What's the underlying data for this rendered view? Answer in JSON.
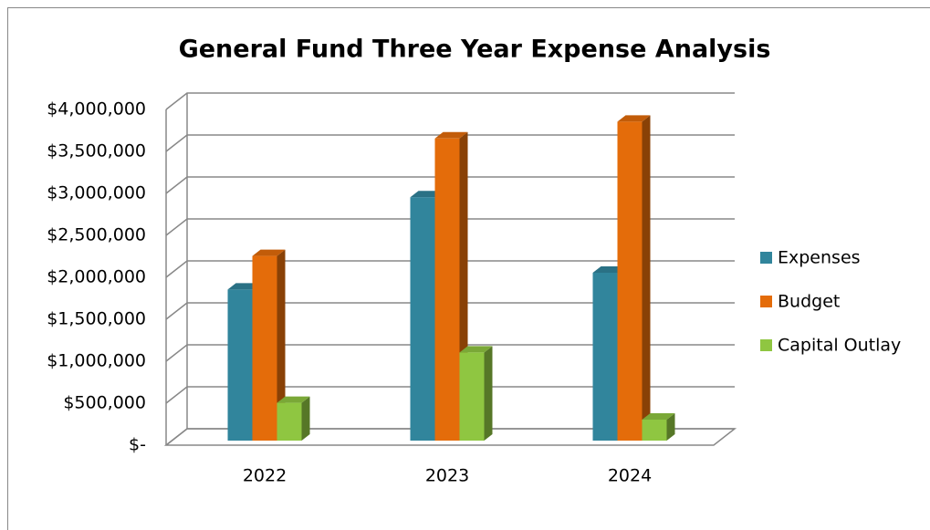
{
  "chart_data": {
    "type": "bar3d",
    "title": "General Fund Three Year Expense Analysis",
    "categories": [
      "2022",
      "2023",
      "2024"
    ],
    "series": [
      {
        "name": "Expenses",
        "color": "#31859c",
        "values": [
          1800000,
          2900000,
          2000000
        ]
      },
      {
        "name": "Budget",
        "color": "#e46c0a",
        "values": [
          2200000,
          3600000,
          3800000
        ]
      },
      {
        "name": "Capital Outlay",
        "color": "#8fc641",
        "values": [
          450000,
          1050000,
          250000
        ]
      }
    ],
    "ylim": [
      0,
      4000000
    ],
    "yticks": [
      {
        "value": 0,
        "label": "$-"
      },
      {
        "value": 500000,
        "label": "$500,000"
      },
      {
        "value": 1000000,
        "label": "$1,000,000"
      },
      {
        "value": 1500000,
        "label": "$1,500,000"
      },
      {
        "value": 2000000,
        "label": "$2,000,000"
      },
      {
        "value": 2500000,
        "label": "$2,500,000"
      },
      {
        "value": 3000000,
        "label": "$3,000,000"
      },
      {
        "value": 3500000,
        "label": "$3,500,000"
      },
      {
        "value": 4000000,
        "label": "$4,000,000"
      }
    ],
    "grid": true,
    "legend": "right"
  }
}
